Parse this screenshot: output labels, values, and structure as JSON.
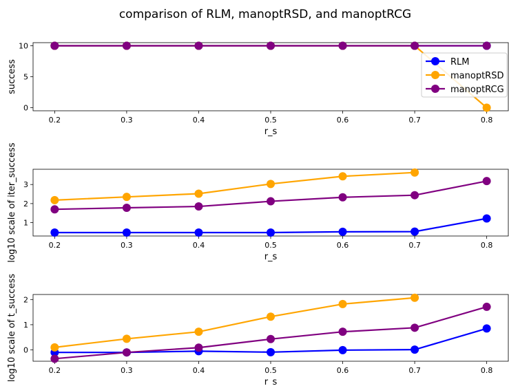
{
  "figure_title": "comparison of RLM, manoptRSD, and manoptRCG",
  "colors": {
    "RLM": "#0000ff",
    "manoptRSD": "#ffa500",
    "manoptRCG": "#800080"
  },
  "chart_data": [
    {
      "type": "line",
      "title": "",
      "xlabel": "r_s",
      "ylabel": "success",
      "x": [
        0.2,
        0.3,
        0.4,
        0.5,
        0.6,
        0.7,
        0.8
      ],
      "xticks": [
        "0.2",
        "0.3",
        "0.4",
        "0.5",
        "0.6",
        "0.7",
        "0.8"
      ],
      "yticks": [
        "0",
        "5",
        "10"
      ],
      "ylim": [
        -0.5,
        10.5
      ],
      "grid": false,
      "legend": {
        "placement": "top-right",
        "entries": [
          "RLM",
          "manoptRSD",
          "manoptRCG"
        ]
      },
      "series": [
        {
          "name": "RLM",
          "values": [
            10,
            10,
            10,
            10,
            10,
            10,
            10
          ]
        },
        {
          "name": "manoptRSD",
          "values": [
            10,
            10,
            10,
            10,
            10,
            10,
            0
          ]
        },
        {
          "name": "manoptRCG",
          "values": [
            10,
            10,
            10,
            10,
            10,
            10,
            10
          ]
        }
      ]
    },
    {
      "type": "line",
      "title": "",
      "xlabel": "r_s",
      "ylabel": "log10 scale of iter_success",
      "x": [
        0.2,
        0.3,
        0.4,
        0.5,
        0.6,
        0.7,
        0.8
      ],
      "xticks": [
        "0.2",
        "0.3",
        "0.4",
        "0.5",
        "0.6",
        "0.7",
        "0.8"
      ],
      "yticks": [
        "1",
        "2",
        "3"
      ],
      "ylim": [
        0.3,
        3.8
      ],
      "grid": false,
      "series": [
        {
          "name": "RLM",
          "values": [
            0.48,
            0.48,
            0.48,
            0.48,
            0.52,
            0.53,
            1.22
          ]
        },
        {
          "name": "manoptRSD",
          "values": [
            2.18,
            2.35,
            2.52,
            3.03,
            3.43,
            3.63,
            null
          ]
        },
        {
          "name": "manoptRCG",
          "values": [
            1.7,
            1.78,
            1.85,
            2.12,
            2.33,
            2.44,
            3.18
          ]
        }
      ]
    },
    {
      "type": "line",
      "title": "",
      "xlabel": "r_s",
      "ylabel": "log10 scale of t_success",
      "x": [
        0.2,
        0.3,
        0.4,
        0.5,
        0.6,
        0.7,
        0.8
      ],
      "xticks": [
        "0.2",
        "0.3",
        "0.4",
        "0.5",
        "0.6",
        "0.7",
        "0.8"
      ],
      "yticks": [
        "0",
        "1",
        "2"
      ],
      "ylim": [
        -0.45,
        2.2
      ],
      "grid": false,
      "series": [
        {
          "name": "RLM",
          "values": [
            -0.1,
            -0.1,
            -0.05,
            -0.09,
            -0.01,
            0.01,
            0.85
          ]
        },
        {
          "name": "manoptRSD",
          "values": [
            0.1,
            0.44,
            0.72,
            1.32,
            1.82,
            2.07,
            null
          ]
        },
        {
          "name": "manoptRCG",
          "values": [
            -0.35,
            -0.1,
            0.09,
            0.43,
            0.72,
            0.88,
            1.71
          ]
        }
      ]
    }
  ]
}
